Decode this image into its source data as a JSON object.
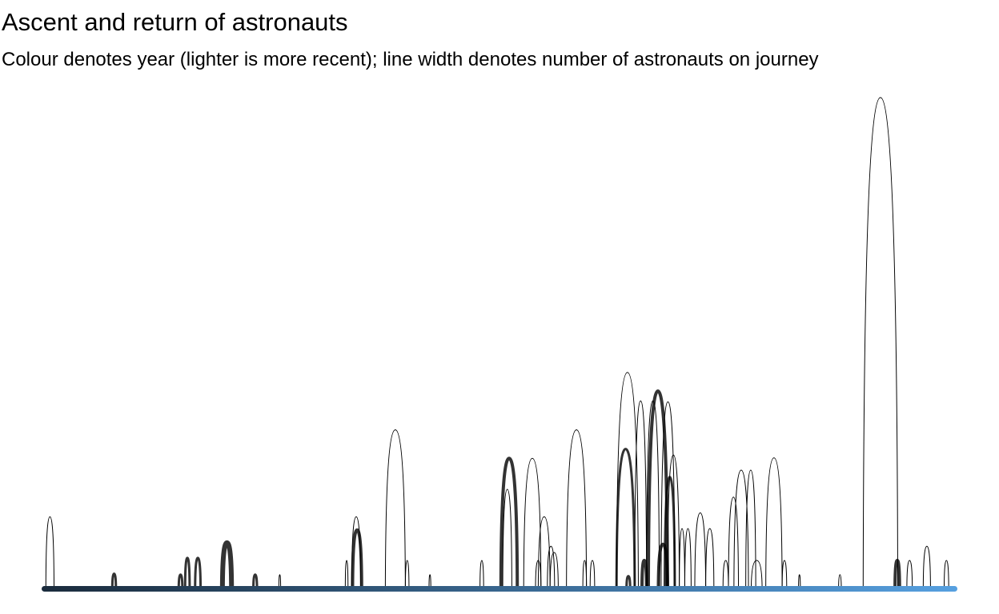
{
  "chart_data": {
    "type": "arc",
    "title": "Ascent and return of astronauts",
    "subtitle": "Colour denotes year (lighter is more recent); line width denotes number of astronauts on journey",
    "x_range": [
      0,
      100
    ],
    "y_range": [
      0,
      100
    ],
    "colors": {
      "early": "#1a2b3c",
      "recent": "#56a0e0",
      "arc": "#000000"
    },
    "arcs": [
      {
        "start": 0.2,
        "end": 1.1,
        "height": 14.6,
        "count": 1
      },
      {
        "start": 7.5,
        "end": 7.9,
        "height": 3.0,
        "count": 3
      },
      {
        "start": 14.8,
        "end": 15.2,
        "height": 2.8,
        "count": 3
      },
      {
        "start": 15.5,
        "end": 16.0,
        "height": 6.2,
        "count": 3
      },
      {
        "start": 16.6,
        "end": 17.2,
        "height": 6.2,
        "count": 3
      },
      {
        "start": 19.6,
        "end": 20.6,
        "height": 9.3,
        "count": 6
      },
      {
        "start": 23.0,
        "end": 23.4,
        "height": 2.8,
        "count": 3
      },
      {
        "start": 25.8,
        "end": 26.0,
        "height": 2.8,
        "count": 1
      },
      {
        "start": 33.1,
        "end": 33.4,
        "height": 5.7,
        "count": 1
      },
      {
        "start": 33.8,
        "end": 34.8,
        "height": 14.6,
        "count": 1
      },
      {
        "start": 33.9,
        "end": 34.9,
        "height": 11.9,
        "count": 4
      },
      {
        "start": 37.5,
        "end": 39.7,
        "height": 32.3,
        "count": 1
      },
      {
        "start": 39.7,
        "end": 40.1,
        "height": 5.7,
        "count": 1
      },
      {
        "start": 42.3,
        "end": 42.5,
        "height": 2.8,
        "count": 1
      },
      {
        "start": 47.9,
        "end": 48.3,
        "height": 5.7,
        "count": 1
      },
      {
        "start": 50.2,
        "end": 52.0,
        "height": 26.5,
        "count": 4
      },
      {
        "start": 50.4,
        "end": 51.4,
        "height": 20.2,
        "count": 1
      },
      {
        "start": 52.7,
        "end": 54.6,
        "height": 26.5,
        "count": 1
      },
      {
        "start": 54.0,
        "end": 54.6,
        "height": 5.7,
        "count": 1
      },
      {
        "start": 54.3,
        "end": 55.6,
        "height": 14.6,
        "count": 1
      },
      {
        "start": 55.3,
        "end": 56.1,
        "height": 8.6,
        "count": 1
      },
      {
        "start": 55.6,
        "end": 56.5,
        "height": 7.3,
        "count": 1
      },
      {
        "start": 57.4,
        "end": 59.6,
        "height": 32.3,
        "count": 1
      },
      {
        "start": 59.2,
        "end": 59.6,
        "height": 5.7,
        "count": 1
      },
      {
        "start": 60.0,
        "end": 60.5,
        "height": 5.7,
        "count": 1
      },
      {
        "start": 62.9,
        "end": 65.3,
        "height": 44.0,
        "count": 1
      },
      {
        "start": 62.9,
        "end": 64.9,
        "height": 28.4,
        "count": 3
      },
      {
        "start": 64.0,
        "end": 64.4,
        "height": 2.5,
        "count": 3
      },
      {
        "start": 64.9,
        "end": 66.2,
        "height": 38.2,
        "count": 1
      },
      {
        "start": 65.7,
        "end": 66.2,
        "height": 5.7,
        "count": 4
      },
      {
        "start": 66.2,
        "end": 67.6,
        "height": 38.2,
        "count": 1
      },
      {
        "start": 66.4,
        "end": 68.5,
        "height": 40.2,
        "count": 4
      },
      {
        "start": 67.5,
        "end": 68.5,
        "height": 9.0,
        "count": 4
      },
      {
        "start": 67.8,
        "end": 69.3,
        "height": 38.0,
        "count": 1
      },
      {
        "start": 68.2,
        "end": 69.3,
        "height": 22.7,
        "count": 3
      },
      {
        "start": 68.5,
        "end": 69.8,
        "height": 27.2,
        "count": 1
      },
      {
        "start": 69.8,
        "end": 70.4,
        "height": 12.2,
        "count": 1
      },
      {
        "start": 70.4,
        "end": 71.1,
        "height": 12.2,
        "count": 1
      },
      {
        "start": 71.5,
        "end": 72.7,
        "height": 15.4,
        "count": 1
      },
      {
        "start": 72.7,
        "end": 73.6,
        "height": 12.2,
        "count": 1
      },
      {
        "start": 74.6,
        "end": 75.2,
        "height": 5.7,
        "count": 1
      },
      {
        "start": 75.2,
        "end": 76.3,
        "height": 18.6,
        "count": 1
      },
      {
        "start": 75.8,
        "end": 77.4,
        "height": 24.1,
        "count": 1
      },
      {
        "start": 77.1,
        "end": 78.2,
        "height": 24.1,
        "count": 1
      },
      {
        "start": 77.7,
        "end": 78.9,
        "height": 5.7,
        "count": 1
      },
      {
        "start": 79.3,
        "end": 81.1,
        "height": 26.6,
        "count": 1
      },
      {
        "start": 81.1,
        "end": 81.6,
        "height": 5.7,
        "count": 1
      },
      {
        "start": 82.9,
        "end": 83.1,
        "height": 2.8,
        "count": 1
      },
      {
        "start": 87.3,
        "end": 87.6,
        "height": 2.8,
        "count": 1
      },
      {
        "start": 90.0,
        "end": 93.8,
        "height": 100.0,
        "count": 1
      },
      {
        "start": 93.5,
        "end": 94.0,
        "height": 5.7,
        "count": 4
      },
      {
        "start": 94.8,
        "end": 95.4,
        "height": 5.7,
        "count": 1
      },
      {
        "start": 96.6,
        "end": 97.4,
        "height": 8.6,
        "count": 1
      },
      {
        "start": 98.9,
        "end": 99.4,
        "height": 5.7,
        "count": 1
      }
    ]
  }
}
